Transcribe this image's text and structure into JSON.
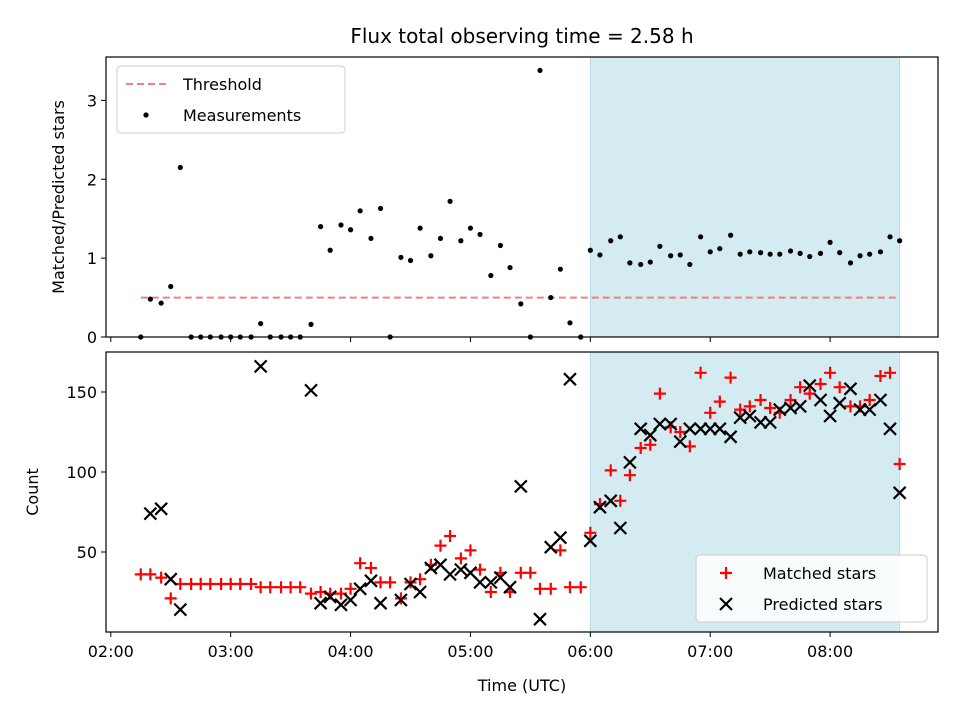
{
  "chart_data": {
    "title": "Flux total observing time = 2.58 h",
    "x_label": "Time (UTC)",
    "x_range_hours": [
      1.96,
      8.9
    ],
    "x_ticks": [
      {
        "value": 2,
        "label": "02:00"
      },
      {
        "value": 3,
        "label": "03:00"
      },
      {
        "value": 4,
        "label": "04:00"
      },
      {
        "value": 5,
        "label": "05:00"
      },
      {
        "value": 6,
        "label": "06:00"
      },
      {
        "value": 7,
        "label": "07:00"
      },
      {
        "value": 8,
        "label": "08:00"
      }
    ],
    "shaded_interval_hours": [
      6.0,
      8.58
    ],
    "shade_color": "#d3ebf1",
    "panels": [
      {
        "type": "scatter",
        "ylabel": "Matched/Predicted stars",
        "ylim": [
          0,
          3.55
        ],
        "y_ticks": [
          0,
          1,
          2,
          3
        ],
        "threshold": 0.5,
        "threshold_color": "#f08080",
        "legend": {
          "position": "upper-left",
          "entries": [
            "Threshold",
            "Measurements"
          ]
        },
        "series": [
          {
            "name": "Measurements",
            "color": "#000000",
            "marker": "dot",
            "points": [
              [
                2.25,
                0.0
              ],
              [
                2.33,
                0.48
              ],
              [
                2.42,
                0.43
              ],
              [
                2.5,
                0.64
              ],
              [
                2.58,
                2.15
              ],
              [
                2.67,
                0.0
              ],
              [
                2.75,
                0.0
              ],
              [
                2.83,
                0.0
              ],
              [
                2.92,
                0.0
              ],
              [
                3.0,
                0.0
              ],
              [
                3.08,
                0.0
              ],
              [
                3.17,
                0.0
              ],
              [
                3.25,
                0.17
              ],
              [
                3.33,
                0.0
              ],
              [
                3.42,
                0.0
              ],
              [
                3.5,
                0.0
              ],
              [
                3.58,
                0.0
              ],
              [
                3.67,
                0.16
              ],
              [
                3.75,
                1.4
              ],
              [
                3.83,
                1.1
              ],
              [
                3.92,
                1.42
              ],
              [
                4.0,
                1.36
              ],
              [
                4.08,
                1.6
              ],
              [
                4.17,
                1.25
              ],
              [
                4.25,
                1.63
              ],
              [
                4.33,
                0.0
              ],
              [
                4.42,
                1.01
              ],
              [
                4.5,
                0.97
              ],
              [
                4.58,
                1.38
              ],
              [
                4.67,
                1.03
              ],
              [
                4.75,
                1.25
              ],
              [
                4.83,
                1.72
              ],
              [
                4.92,
                1.22
              ],
              [
                5.0,
                1.38
              ],
              [
                5.08,
                1.3
              ],
              [
                5.17,
                0.78
              ],
              [
                5.25,
                1.16
              ],
              [
                5.33,
                0.88
              ],
              [
                5.42,
                0.42
              ],
              [
                5.5,
                0.0
              ],
              [
                5.58,
                3.38
              ],
              [
                5.67,
                0.5
              ],
              [
                5.75,
                0.86
              ],
              [
                5.83,
                0.18
              ],
              [
                5.92,
                0.0
              ],
              [
                6.0,
                1.1
              ],
              [
                6.08,
                1.04
              ],
              [
                6.17,
                1.22
              ],
              [
                6.25,
                1.27
              ],
              [
                6.33,
                0.94
              ],
              [
                6.42,
                0.92
              ],
              [
                6.5,
                0.95
              ],
              [
                6.58,
                1.15
              ],
              [
                6.67,
                1.03
              ],
              [
                6.75,
                1.04
              ],
              [
                6.83,
                0.92
              ],
              [
                6.92,
                1.27
              ],
              [
                7.0,
                1.08
              ],
              [
                7.08,
                1.12
              ],
              [
                7.17,
                1.29
              ],
              [
                7.25,
                1.05
              ],
              [
                7.33,
                1.08
              ],
              [
                7.42,
                1.07
              ],
              [
                7.5,
                1.05
              ],
              [
                7.58,
                1.05
              ],
              [
                7.67,
                1.09
              ],
              [
                7.75,
                1.06
              ],
              [
                7.83,
                1.02
              ],
              [
                7.92,
                1.06
              ],
              [
                8.0,
                1.2
              ],
              [
                8.08,
                1.07
              ],
              [
                8.17,
                0.94
              ],
              [
                8.25,
                1.03
              ],
              [
                8.33,
                1.05
              ],
              [
                8.42,
                1.08
              ],
              [
                8.5,
                1.27
              ],
              [
                8.58,
                1.22
              ]
            ]
          }
        ]
      },
      {
        "type": "scatter",
        "ylabel": "Count",
        "ylim": [
          0,
          175
        ],
        "y_ticks": [
          50,
          100,
          150
        ],
        "legend": {
          "position": "lower-right",
          "entries": [
            "Matched stars",
            "Predicted stars"
          ]
        },
        "series": [
          {
            "name": "Matched stars",
            "color": "#ff0000",
            "marker": "plus",
            "points": [
              [
                2.25,
                36
              ],
              [
                2.33,
                36
              ],
              [
                2.42,
                34
              ],
              [
                2.5,
                21
              ],
              [
                2.58,
                30
              ],
              [
                2.67,
                30
              ],
              [
                2.75,
                30
              ],
              [
                2.83,
                30
              ],
              [
                2.92,
                30
              ],
              [
                3.0,
                30
              ],
              [
                3.08,
                30
              ],
              [
                3.17,
                30
              ],
              [
                3.25,
                28
              ],
              [
                3.33,
                28
              ],
              [
                3.42,
                28
              ],
              [
                3.5,
                28
              ],
              [
                3.58,
                28
              ],
              [
                3.67,
                24
              ],
              [
                3.75,
                25
              ],
              [
                3.83,
                24
              ],
              [
                3.92,
                24
              ],
              [
                4.0,
                27
              ],
              [
                4.08,
                43
              ],
              [
                4.17,
                40
              ],
              [
                4.25,
                31
              ],
              [
                4.33,
                31
              ],
              [
                4.42,
                21
              ],
              [
                4.5,
                31
              ],
              [
                4.58,
                33
              ],
              [
                4.67,
                42
              ],
              [
                4.75,
                54
              ],
              [
                4.83,
                60
              ],
              [
                4.92,
                46
              ],
              [
                5.0,
                51
              ],
              [
                5.08,
                39
              ],
              [
                5.17,
                25
              ],
              [
                5.25,
                37
              ],
              [
                5.33,
                25
              ],
              [
                5.42,
                37
              ],
              [
                5.5,
                37
              ],
              [
                5.58,
                27
              ],
              [
                5.67,
                27
              ],
              [
                5.75,
                51
              ],
              [
                5.83,
                28
              ],
              [
                5.92,
                28
              ],
              [
                6.0,
                62
              ],
              [
                6.08,
                80
              ],
              [
                6.17,
                101
              ],
              [
                6.25,
                82
              ],
              [
                6.33,
                98
              ],
              [
                6.42,
                115
              ],
              [
                6.5,
                117
              ],
              [
                6.58,
                149
              ],
              [
                6.67,
                128
              ],
              [
                6.75,
                125
              ],
              [
                6.83,
                116
              ],
              [
                6.92,
                162
              ],
              [
                7.0,
                137
              ],
              [
                7.08,
                144
              ],
              [
                7.17,
                159
              ],
              [
                7.25,
                139
              ],
              [
                7.33,
                141
              ],
              [
                7.42,
                145
              ],
              [
                7.5,
                140
              ],
              [
                7.58,
                137
              ],
              [
                7.67,
                145
              ],
              [
                7.75,
                153
              ],
              [
                7.83,
                149
              ],
              [
                7.92,
                155
              ],
              [
                8.0,
                162
              ],
              [
                8.08,
                153
              ],
              [
                8.17,
                141
              ],
              [
                8.25,
                141
              ],
              [
                8.33,
                145
              ],
              [
                8.42,
                160
              ],
              [
                8.5,
                162
              ],
              [
                8.58,
                105
              ]
            ]
          },
          {
            "name": "Predicted stars",
            "color": "#000000",
            "marker": "x",
            "points": [
              [
                2.33,
                74
              ],
              [
                2.42,
                77
              ],
              [
                2.5,
                33
              ],
              [
                2.58,
                14
              ],
              [
                3.25,
                166
              ],
              [
                3.67,
                151
              ],
              [
                3.75,
                18
              ],
              [
                3.83,
                22
              ],
              [
                3.92,
                17
              ],
              [
                4.0,
                20
              ],
              [
                4.08,
                27
              ],
              [
                4.17,
                32
              ],
              [
                4.25,
                18
              ],
              [
                4.42,
                20
              ],
              [
                4.5,
                30
              ],
              [
                4.58,
                25
              ],
              [
                4.67,
                40
              ],
              [
                4.75,
                42
              ],
              [
                4.83,
                36
              ],
              [
                4.92,
                39
              ],
              [
                5.0,
                37
              ],
              [
                5.08,
                31
              ],
              [
                5.17,
                31
              ],
              [
                5.25,
                34
              ],
              [
                5.33,
                28
              ],
              [
                5.42,
                91
              ],
              [
                5.58,
                8
              ],
              [
                5.67,
                53
              ],
              [
                5.75,
                59
              ],
              [
                5.83,
                158
              ],
              [
                6.0,
                57
              ],
              [
                6.08,
                78
              ],
              [
                6.17,
                82
              ],
              [
                6.25,
                65
              ],
              [
                6.33,
                106
              ],
              [
                6.42,
                127
              ],
              [
                6.5,
                123
              ],
              [
                6.58,
                130
              ],
              [
                6.67,
                130
              ],
              [
                6.75,
                119
              ],
              [
                6.83,
                127
              ],
              [
                6.92,
                127
              ],
              [
                7.0,
                127
              ],
              [
                7.08,
                127
              ],
              [
                7.17,
                122
              ],
              [
                7.25,
                134
              ],
              [
                7.33,
                135
              ],
              [
                7.42,
                131
              ],
              [
                7.5,
                131
              ],
              [
                7.58,
                139
              ],
              [
                7.67,
                140
              ],
              [
                7.75,
                141
              ],
              [
                7.83,
                154
              ],
              [
                7.92,
                145
              ],
              [
                8.0,
                135
              ],
              [
                8.08,
                143
              ],
              [
                8.17,
                152
              ],
              [
                8.25,
                139
              ],
              [
                8.33,
                139
              ],
              [
                8.42,
                145
              ],
              [
                8.5,
                127
              ],
              [
                8.58,
                87
              ]
            ]
          }
        ]
      }
    ]
  }
}
